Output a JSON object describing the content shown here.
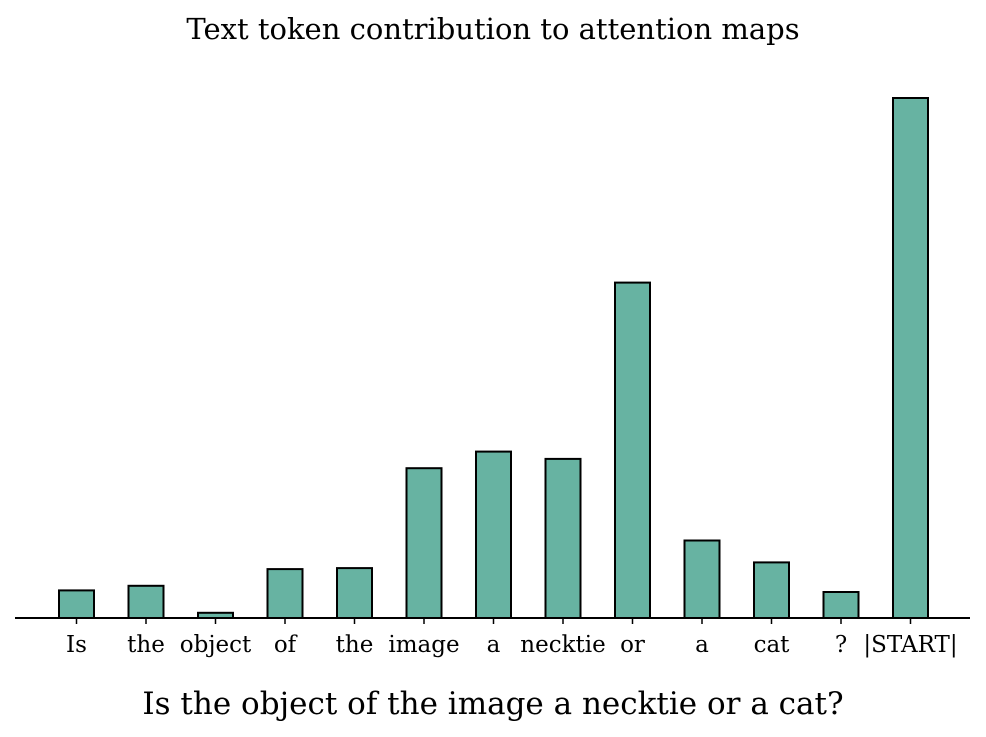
{
  "chart_data": {
    "type": "bar",
    "title": "Text token contribution to attention maps",
    "xlabel": "Is the object of the image a necktie or a cat?",
    "ylabel": "",
    "categories": [
      "Is",
      "the",
      "object",
      "of",
      "the",
      "image",
      "a",
      "necktie",
      "or",
      "a",
      "cat",
      "?",
      "|START|"
    ],
    "values": [
      0.053,
      0.062,
      0.01,
      0.094,
      0.096,
      0.288,
      0.32,
      0.306,
      0.645,
      0.149,
      0.107,
      0.05,
      1.0
    ],
    "ylim": [
      0,
      1.06
    ],
    "bar_color": "#67b3a2",
    "edge_color": "#000000",
    "grid": false,
    "yaxis_visible": false,
    "legend": "none"
  }
}
